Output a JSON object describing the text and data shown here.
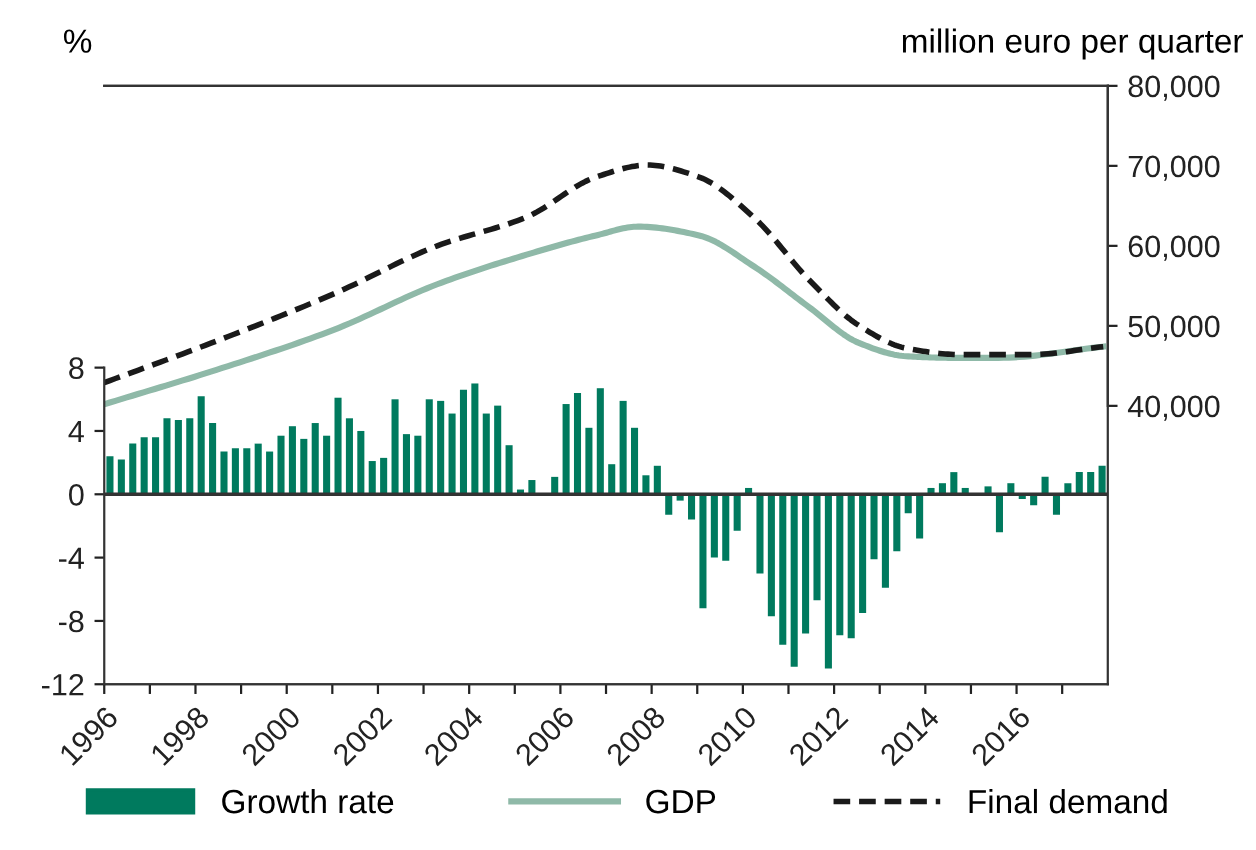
{
  "chart_data": {
    "type": "bar",
    "ylabel": "%",
    "y2label": "million euro per quarter",
    "legend": "bottom",
    "grid": false,
    "xlim": [
      1996,
      2018
    ],
    "xticks": [
      1996,
      {
        "value": 1997,
        "label": null
      },
      1998,
      {
        "value": 1999,
        "label": null
      },
      2000,
      {
        "value": 2001,
        "label": null
      },
      2002,
      {
        "value": 2003,
        "label": null
      },
      2004,
      {
        "value": 2005,
        "label": null
      },
      2006,
      {
        "value": 2007,
        "label": null
      },
      2008,
      {
        "value": 2009,
        "label": null
      },
      2010,
      {
        "value": 2011,
        "label": null
      },
      2012,
      {
        "value": 2013,
        "label": null
      },
      2014,
      {
        "value": 2015,
        "label": null
      },
      2016,
      {
        "value": 2017,
        "label": null
      }
    ],
    "ylim": [
      -12,
      25.8
    ],
    "yticks": [
      -12,
      -8,
      -4,
      0,
      4,
      8
    ],
    "y2lim": [
      5200,
      80000
    ],
    "y2ticks": [
      {
        "value": 40000,
        "label": "40,000"
      },
      {
        "value": 50000,
        "label": "50,000"
      },
      {
        "value": 60000,
        "label": "60,000"
      },
      {
        "value": 70000,
        "label": "70,000"
      },
      {
        "value": 80000,
        "label": "80,000"
      }
    ],
    "ref_lines": [
      {
        "axis": "y",
        "value": 0,
        "color": "#333333"
      }
    ],
    "series": [
      {
        "name": "Growth rate",
        "color": "#007a5e",
        "x": [
          1996.125,
          1996.375,
          1996.625,
          1996.875,
          1997.125,
          1997.375,
          1997.625,
          1997.875,
          1998.125,
          1998.375,
          1998.625,
          1998.875,
          1999.125,
          1999.375,
          1999.625,
          1999.875,
          2000.125,
          2000.375,
          2000.625,
          2000.875,
          2001.125,
          2001.375,
          2001.625,
          2001.875,
          2002.125,
          2002.375,
          2002.625,
          2002.875,
          2003.125,
          2003.375,
          2003.625,
          2003.875,
          2004.125,
          2004.375,
          2004.625,
          2004.875,
          2005.125,
          2005.375,
          2005.625,
          2005.875,
          2006.125,
          2006.375,
          2006.625,
          2006.875,
          2007.125,
          2007.375,
          2007.625,
          2007.875,
          2008.125,
          2008.375,
          2008.625,
          2008.875,
          2009.125,
          2009.375,
          2009.625,
          2009.875,
          2010.125,
          2010.375,
          2010.625,
          2010.875,
          2011.125,
          2011.375,
          2011.625,
          2011.875,
          2012.125,
          2012.375,
          2012.625,
          2012.875,
          2013.125,
          2013.375,
          2013.625,
          2013.875,
          2014.125,
          2014.375,
          2014.625,
          2014.875,
          2015.125,
          2015.375,
          2015.625,
          2015.875,
          2016.125,
          2016.375,
          2016.625,
          2016.875,
          2017.125,
          2017.375,
          2017.625,
          2017.875
        ],
        "values": [
          2.4,
          2.2,
          3.2,
          3.6,
          3.6,
          4.8,
          4.7,
          4.8,
          6.2,
          4.5,
          2.7,
          2.9,
          2.9,
          3.2,
          2.7,
          3.7,
          4.3,
          3.5,
          4.5,
          3.7,
          6.1,
          4.8,
          4.0,
          2.1,
          2.3,
          6.0,
          3.8,
          3.7,
          6.0,
          5.9,
          5.1,
          6.6,
          7.0,
          5.1,
          5.6,
          3.1,
          0.3,
          0.9,
          0.0,
          1.1,
          5.7,
          6.4,
          4.2,
          6.7,
          1.9,
          5.9,
          4.2,
          1.2,
          1.8,
          -1.3,
          -0.4,
          -1.6,
          -7.2,
          -4.0,
          -4.2,
          -2.3,
          0.4,
          -5.0,
          -7.7,
          -9.5,
          -10.9,
          -8.8,
          -6.7,
          -11.0,
          -8.9,
          -9.1,
          -7.5,
          -4.1,
          -5.9,
          -3.6,
          -1.2,
          -2.8,
          0.4,
          0.7,
          1.4,
          0.4,
          0.0,
          0.5,
          -2.4,
          0.7,
          -0.3,
          -0.7,
          1.1,
          -1.3,
          0.7,
          1.4,
          1.4,
          1.8
        ]
      },
      {
        "name": "GDP",
        "type": "line",
        "axis": "y2",
        "color": "#8fb9a8",
        "line_style": "solid",
        "x": [
          1996.0,
          1998.46,
          2001.03,
          2003.3,
          2005.26,
          2006.78,
          2007.7,
          2009.04,
          2010.25,
          2011.46,
          2012.53,
          2013.58,
          2014.6,
          2015.6,
          2017.9
        ],
        "values": [
          40200,
          44500,
          49500,
          55200,
          58900,
          61300,
          62400,
          61300,
          57400,
          52300,
          47900,
          46200,
          46000,
          46000,
          47400
        ]
      },
      {
        "name": "Final demand",
        "type": "line",
        "axis": "y2",
        "color": "#1a1a1a",
        "line_style": "dashed",
        "x": [
          1996.0,
          1998.46,
          2001.03,
          2003.3,
          2005.26,
          2006.78,
          2007.91,
          2009.04,
          2010.25,
          2011.46,
          2012.53,
          2013.58,
          2014.8,
          2016.3,
          2017.9
        ],
        "values": [
          42900,
          48100,
          54000,
          60000,
          63600,
          68600,
          70100,
          68600,
          63500,
          55700,
          50100,
          47200,
          46400,
          46400,
          47400
        ]
      }
    ]
  }
}
